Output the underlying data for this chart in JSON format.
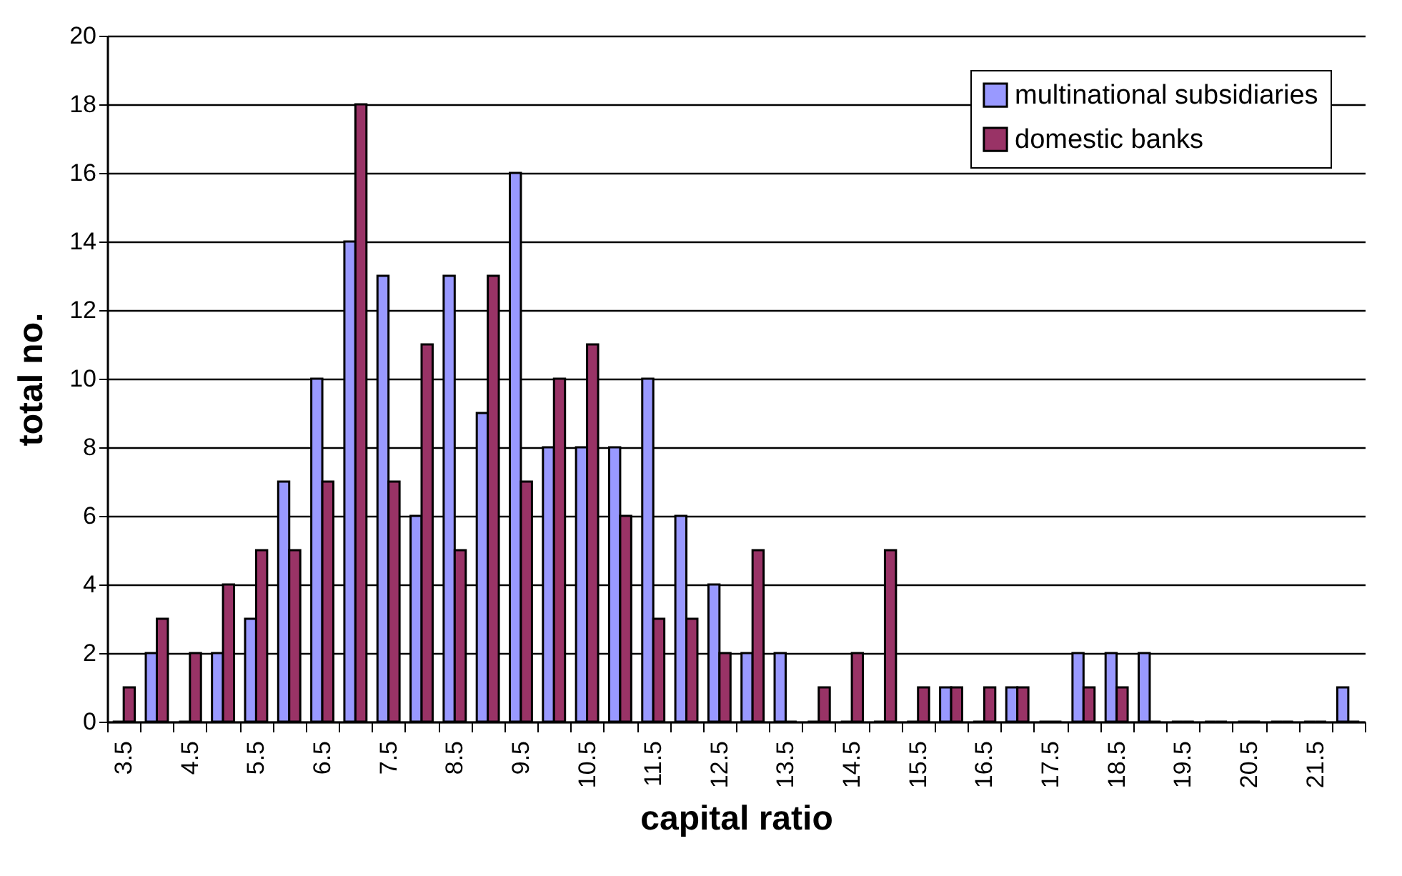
{
  "chart_data": {
    "type": "bar",
    "xlabel": "capital ratio",
    "ylabel": "total no.",
    "categories": [
      "3.5",
      null,
      "4.5",
      null,
      "5.5",
      null,
      "6.5",
      null,
      "7.5",
      null,
      "8.5",
      null,
      "9.5",
      null,
      "10.5",
      null,
      "11.5",
      null,
      "12.5",
      null,
      "13.5",
      null,
      "14.5",
      null,
      "15.5",
      null,
      "16.5",
      null,
      "17.5",
      null,
      "18.5",
      null,
      "19.5",
      null,
      "20.5",
      null,
      "21.5",
      null
    ],
    "series": [
      {
        "name": "multinational subsidiaries",
        "color": "#9999ff",
        "values": [
          0,
          2,
          0,
          2,
          3,
          7,
          10,
          14,
          13,
          6,
          13,
          9,
          16,
          8,
          8,
          8,
          10,
          6,
          4,
          2,
          2,
          0,
          0,
          0,
          0,
          1,
          0,
          1,
          0,
          2,
          2,
          2,
          0,
          0,
          0,
          0,
          0,
          1
        ]
      },
      {
        "name": "domestic banks",
        "color": "#993366",
        "values": [
          1,
          3,
          2,
          4,
          5,
          5,
          7,
          18,
          7,
          11,
          5,
          13,
          7,
          10,
          11,
          6,
          3,
          3,
          2,
          5,
          0,
          1,
          2,
          5,
          1,
          1,
          1,
          1,
          0,
          1,
          1,
          0,
          0,
          0,
          0,
          0,
          0,
          0
        ]
      }
    ],
    "ylim": [
      0,
      20
    ],
    "yticks": [
      0,
      2,
      4,
      6,
      8,
      10,
      12,
      14,
      16,
      18,
      20
    ],
    "grid": "y",
    "legend": "top right"
  }
}
